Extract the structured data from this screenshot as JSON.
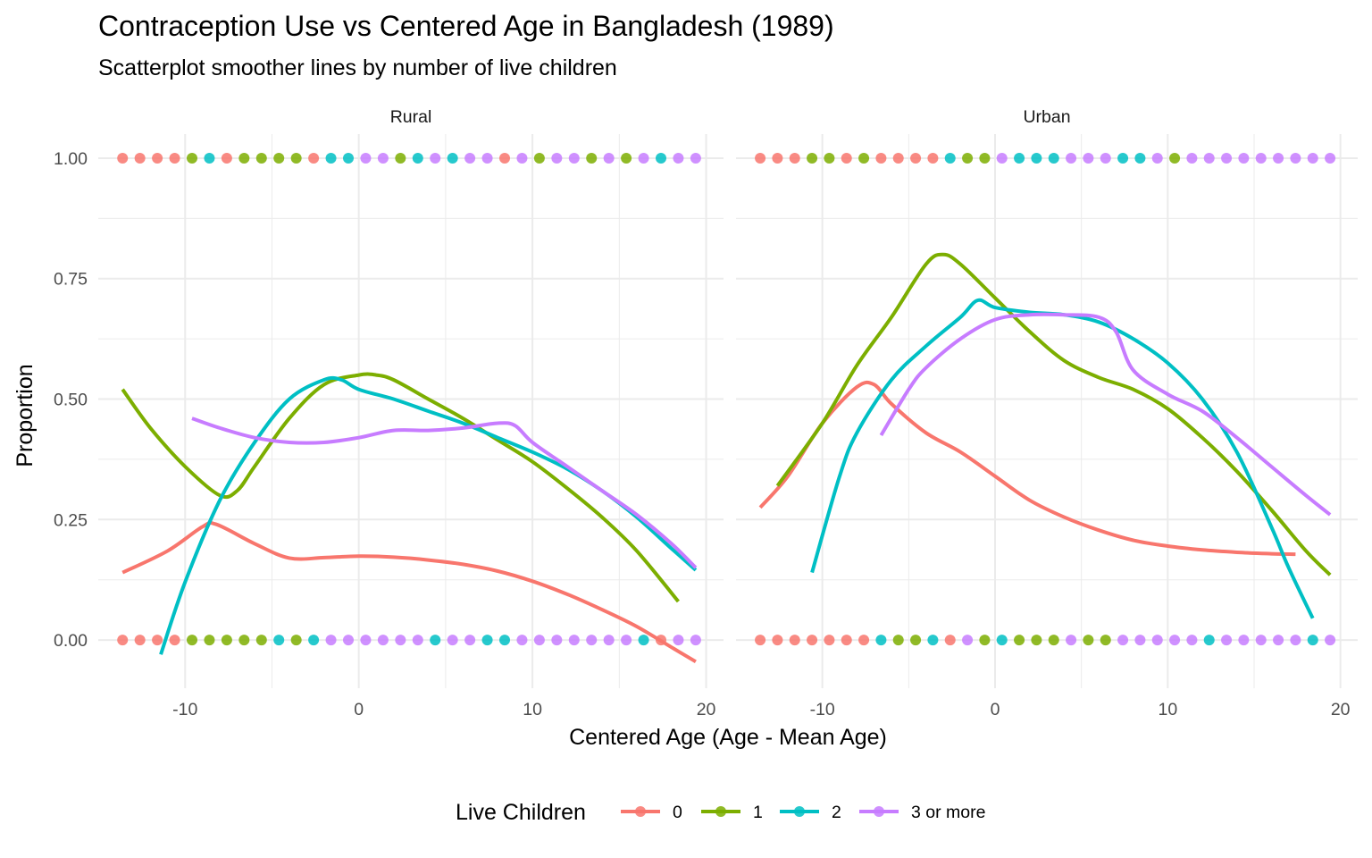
{
  "chart_data": {
    "type": "line",
    "title": "Contraception Use vs Centered Age in Bangladesh (1989)",
    "subtitle": "Scatterplot smoother lines by number of live children",
    "xlabel": "Centered Age (Age - Mean Age)",
    "ylabel": "Proportion",
    "xlim": [
      -15,
      21
    ],
    "ylim": [
      -0.1,
      1.05
    ],
    "x_ticks": [
      -10,
      0,
      10,
      20
    ],
    "x_tick_labels": [
      "-10",
      "0",
      "10",
      "20"
    ],
    "y_ticks": [
      0,
      0.25,
      0.5,
      0.75,
      1
    ],
    "y_tick_labels": [
      "0.00",
      "0.25",
      "0.50",
      "0.75",
      "1.00"
    ],
    "grid": true,
    "legend": {
      "title": "Live Children",
      "position": "bottom",
      "entries": [
        "0",
        "1",
        "2",
        "3 or more"
      ]
    },
    "colors": {
      "0": "#F8766D",
      "1": "#7CAE00",
      "2": "#00BFC4",
      "3 or more": "#C77CFF"
    },
    "panels": [
      {
        "name": "Rural",
        "series": [
          {
            "name": "0",
            "x": [
              -13.6,
              -11,
              -9,
              -8.2,
              -6,
              -4,
              -2,
              0,
              2,
              4,
              6,
              8,
              10,
              12,
              14,
              16,
              18,
              19.4
            ],
            "y": [
              0.14,
              0.185,
              0.235,
              0.24,
              0.2,
              0.17,
              0.171,
              0.174,
              0.172,
              0.166,
              0.157,
              0.143,
              0.122,
              0.095,
              0.063,
              0.028,
              -0.015,
              -0.045
            ]
          },
          {
            "name": "1",
            "x": [
              -13.6,
              -12,
              -10,
              -8,
              -7,
              -6,
              -4,
              -2,
              0,
              1,
              2,
              4,
              6,
              8,
              10,
              12,
              14,
              16,
              18.4
            ],
            "y": [
              0.52,
              0.44,
              0.36,
              0.3,
              0.31,
              0.36,
              0.46,
              0.53,
              0.55,
              0.55,
              0.54,
              0.5,
              0.46,
              0.415,
              0.37,
              0.315,
              0.255,
              0.185,
              0.08
            ]
          },
          {
            "name": "2",
            "x": [
              -11.4,
              -10,
              -8,
              -6,
              -4,
              -2,
              -1,
              0,
              2,
              4,
              6,
              8,
              10,
              12,
              14,
              16,
              18,
              19.4
            ],
            "y": [
              -0.03,
              0.12,
              0.29,
              0.41,
              0.5,
              0.54,
              0.54,
              0.52,
              0.5,
              0.475,
              0.45,
              0.42,
              0.39,
              0.355,
              0.31,
              0.255,
              0.19,
              0.145
            ]
          },
          {
            "name": "3 or more",
            "x": [
              -9.6,
              -8,
              -6,
              -4,
              -2,
              0,
              2,
              4,
              6,
              8,
              9,
              10,
              12,
              14,
              16,
              18,
              19.4
            ],
            "y": [
              0.46,
              0.44,
              0.42,
              0.41,
              0.41,
              0.42,
              0.435,
              0.435,
              0.44,
              0.45,
              0.445,
              0.41,
              0.36,
              0.31,
              0.26,
              0.2,
              0.15
            ]
          }
        ]
      },
      {
        "name": "Urban",
        "series": [
          {
            "name": "0",
            "x": [
              -13.6,
              -12,
              -10,
              -8,
              -7,
              -6,
              -4,
              -2,
              0,
              2,
              4,
              6,
              8,
              10,
              12,
              14,
              16,
              17.4
            ],
            "y": [
              0.275,
              0.34,
              0.45,
              0.525,
              0.53,
              0.49,
              0.43,
              0.39,
              0.34,
              0.29,
              0.255,
              0.228,
              0.207,
              0.195,
              0.187,
              0.182,
              0.179,
              0.178
            ]
          },
          {
            "name": "1",
            "x": [
              -12.6,
              -10,
              -8,
              -6,
              -4,
              -3,
              -2,
              0,
              2,
              4,
              6,
              8,
              10,
              12,
              14,
              16,
              18,
              19.4
            ],
            "y": [
              0.32,
              0.45,
              0.57,
              0.67,
              0.78,
              0.8,
              0.78,
              0.71,
              0.64,
              0.58,
              0.545,
              0.52,
              0.48,
              0.42,
              0.35,
              0.27,
              0.185,
              0.135
            ]
          },
          {
            "name": "2",
            "x": [
              -10.6,
              -9,
              -8,
              -6,
              -4,
              -2,
              -1,
              0,
              2,
              4,
              6,
              8,
              10,
              12,
              14,
              16,
              17,
              18.4
            ],
            "y": [
              0.14,
              0.34,
              0.43,
              0.54,
              0.61,
              0.67,
              0.705,
              0.69,
              0.68,
              0.675,
              0.66,
              0.625,
              0.575,
              0.5,
              0.39,
              0.235,
              0.15,
              0.045
            ]
          },
          {
            "name": "3 or more",
            "x": [
              -6.6,
              -5,
              -4,
              -2,
              0,
              2,
              4,
              6,
              7,
              8,
              10,
              12,
              14,
              16,
              18,
              19.4
            ],
            "y": [
              0.425,
              0.52,
              0.565,
              0.625,
              0.665,
              0.675,
              0.675,
              0.67,
              0.64,
              0.56,
              0.51,
              0.475,
              0.42,
              0.36,
              0.3,
              0.26
            ]
          }
        ]
      }
    ],
    "points": [
      {
        "panel": "Rural",
        "y": 1,
        "x": [
          -13.6,
          -12.6,
          -11.6,
          -10.6,
          -9.6,
          -8.6,
          -7.6,
          -6.6,
          -5.6,
          -4.6,
          -3.6,
          -2.6,
          -1.6,
          -0.6,
          0.4,
          1.4,
          2.4,
          3.4,
          4.4,
          5.4,
          6.4,
          7.4,
          8.4,
          9.4,
          10.4,
          11.4,
          12.4,
          13.4,
          14.4,
          15.4,
          16.4,
          17.4,
          18.4,
          19.4
        ],
        "groups": [
          "0",
          "0",
          "0",
          "0",
          "1",
          "2",
          "0",
          "1",
          "1",
          "1",
          "1",
          "0",
          "2",
          "2",
          "3 or more",
          "3 or more",
          "1",
          "2",
          "3 or more",
          "2",
          "3 or more",
          "3 or more",
          "0",
          "3 or more",
          "1",
          "3 or more",
          "3 or more",
          "1",
          "3 or more",
          "1",
          "3 or more",
          "2",
          "3 or more",
          "3 or more"
        ]
      },
      {
        "panel": "Rural",
        "y": 0,
        "x": [
          -13.6,
          -12.6,
          -11.6,
          -10.6,
          -9.6,
          -8.6,
          -7.6,
          -6.6,
          -5.6,
          -4.6,
          -3.6,
          -2.6,
          -1.6,
          -0.6,
          0.4,
          1.4,
          2.4,
          3.4,
          4.4,
          5.4,
          6.4,
          7.4,
          8.4,
          9.4,
          10.4,
          11.4,
          12.4,
          13.4,
          14.4,
          15.4,
          16.4,
          17.4,
          18.4,
          19.4
        ],
        "groups": [
          "0",
          "0",
          "0",
          "0",
          "1",
          "1",
          "1",
          "1",
          "1",
          "2",
          "1",
          "2",
          "3 or more",
          "3 or more",
          "3 or more",
          "3 or more",
          "3 or more",
          "3 or more",
          "2",
          "3 or more",
          "3 or more",
          "2",
          "2",
          "3 or more",
          "3 or more",
          "3 or more",
          "3 or more",
          "3 or more",
          "3 or more",
          "3 or more",
          "2",
          "0",
          "3 or more",
          "3 or more"
        ]
      },
      {
        "panel": "Urban",
        "y": 1,
        "x": [
          -13.6,
          -12.6,
          -11.6,
          -10.6,
          -9.6,
          -8.6,
          -7.6,
          -6.6,
          -5.6,
          -4.6,
          -3.6,
          -2.6,
          -1.6,
          -0.6,
          0.4,
          1.4,
          2.4,
          3.4,
          4.4,
          5.4,
          6.4,
          7.4,
          8.4,
          9.4,
          10.4,
          11.4,
          12.4,
          13.4,
          14.4,
          15.4,
          16.4,
          17.4,
          18.4,
          19.4
        ],
        "groups": [
          "0",
          "0",
          "0",
          "1",
          "1",
          "0",
          "1",
          "0",
          "0",
          "0",
          "0",
          "2",
          "1",
          "1",
          "3 or more",
          "2",
          "2",
          "2",
          "3 or more",
          "3 or more",
          "3 or more",
          "2",
          "2",
          "3 or more",
          "1",
          "3 or more",
          "3 or more",
          "3 or more",
          "3 or more",
          "3 or more",
          "3 or more",
          "3 or more",
          "3 or more",
          "3 or more"
        ]
      },
      {
        "panel": "Urban",
        "y": 0,
        "x": [
          -13.6,
          -12.6,
          -11.6,
          -10.6,
          -9.6,
          -8.6,
          -7.6,
          -6.6,
          -5.6,
          -4.6,
          -3.6,
          -2.6,
          -1.6,
          -0.6,
          0.4,
          1.4,
          2.4,
          3.4,
          4.4,
          5.4,
          6.4,
          7.4,
          8.4,
          9.4,
          10.4,
          11.4,
          12.4,
          13.4,
          14.4,
          15.4,
          16.4,
          17.4,
          18.4,
          19.4
        ],
        "groups": [
          "0",
          "0",
          "0",
          "0",
          "0",
          "0",
          "0",
          "2",
          "1",
          "1",
          "2",
          "0",
          "3 or more",
          "1",
          "2",
          "1",
          "1",
          "1",
          "3 or more",
          "1",
          "1",
          "3 or more",
          "3 or more",
          "3 or more",
          "3 or more",
          "3 or more",
          "2",
          "3 or more",
          "3 or more",
          "3 or more",
          "3 or more",
          "3 or more",
          "2",
          "3 or more"
        ]
      }
    ]
  }
}
